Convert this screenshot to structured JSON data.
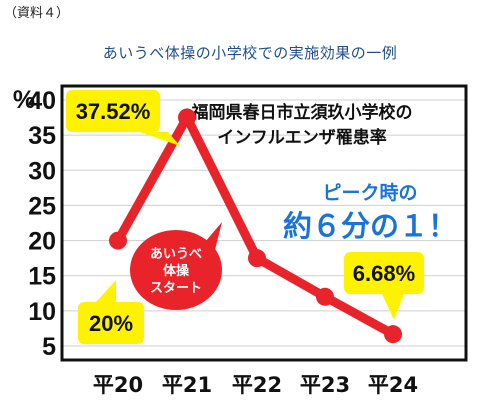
{
  "doc_label": "（資料４）",
  "subtitle": "あいうべ体操の小学校での実施効果の一例",
  "colors": {
    "line": "#e8242a",
    "callout": "#fff200",
    "blue": "#1a73d8",
    "frame": "#111111",
    "grid": "#cfcfcf"
  },
  "chart_data": {
    "type": "line",
    "title": "福岡県春日市立須玖小学校のインフルエンザ罹患率",
    "title_lines": [
      "福岡県春日市立須玖小学校の",
      "インフルエンザ罹患率"
    ],
    "ylabel": "%",
    "ylim": [
      3,
      42
    ],
    "yticks": [
      5,
      10,
      15,
      20,
      25,
      30,
      35,
      40
    ],
    "categories": [
      "平20",
      "平21",
      "平22",
      "平23",
      "平24"
    ],
    "values": [
      20,
      37.52,
      17.5,
      12,
      6.68
    ],
    "grid": true,
    "data_labels": [
      {
        "index": 0,
        "text": "20%"
      },
      {
        "index": 1,
        "text": "37.52%"
      },
      {
        "index": 4,
        "text": "6.68%"
      }
    ],
    "annotations": {
      "peak_line1": "ピーク時の",
      "peak_line2": "約６分の１！",
      "start_line1": "あいうべ",
      "start_line2": "体操",
      "start_line3": "スタート"
    }
  }
}
